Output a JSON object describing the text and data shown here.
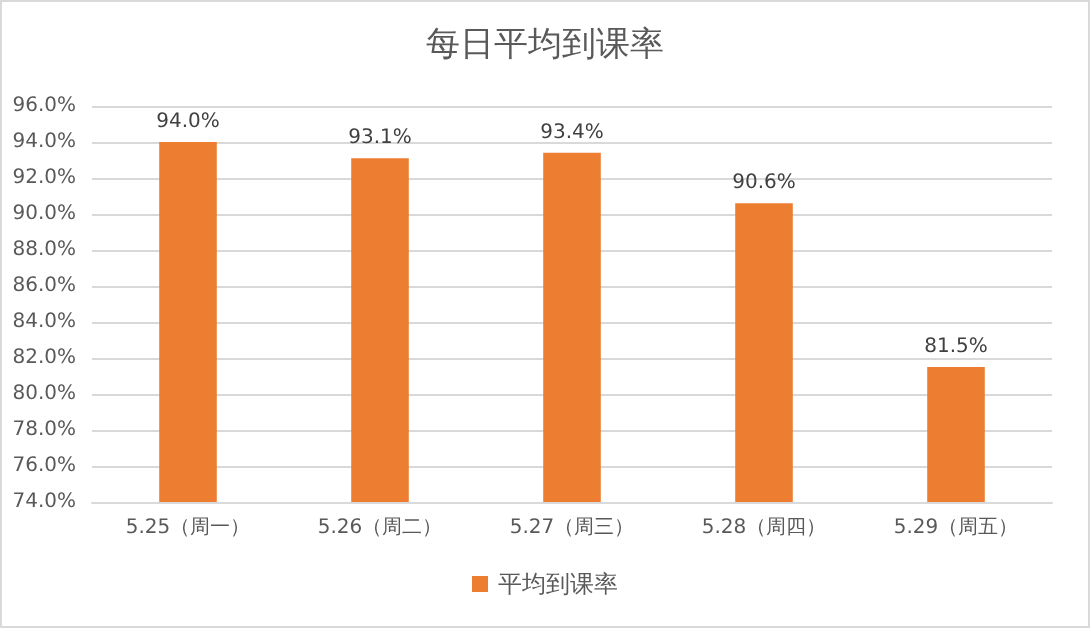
{
  "chart_data": {
    "type": "bar",
    "title": "每日平均到课率",
    "categories": [
      "5.25（周一）",
      "5.26（周二）",
      "5.27（周三）",
      "5.28（周四）",
      "5.29（周五）"
    ],
    "series": [
      {
        "name": "平均到课率",
        "color": "#ed7d31",
        "values": [
          94.0,
          93.1,
          93.4,
          90.6,
          81.5
        ],
        "value_labels": [
          "94.0%",
          "93.1%",
          "93.4%",
          "90.6%",
          "81.5%"
        ]
      }
    ],
    "ylim": [
      74,
      96
    ],
    "yticks": [
      {
        "value": 74,
        "label": "74.0%"
      },
      {
        "value": 76,
        "label": "76.0%"
      },
      {
        "value": 78,
        "label": "78.0%"
      },
      {
        "value": 80,
        "label": "80.0%"
      },
      {
        "value": 82,
        "label": "82.0%"
      },
      {
        "value": 84,
        "label": "84.0%"
      },
      {
        "value": 86,
        "label": "86.0%"
      },
      {
        "value": 88,
        "label": "88.0%"
      },
      {
        "value": 90,
        "label": "90.0%"
      },
      {
        "value": 92,
        "label": "92.0%"
      },
      {
        "value": 94,
        "label": "94.0%"
      },
      {
        "value": 96,
        "label": "96.0%"
      }
    ],
    "grid": "y",
    "legend": "bottom"
  }
}
